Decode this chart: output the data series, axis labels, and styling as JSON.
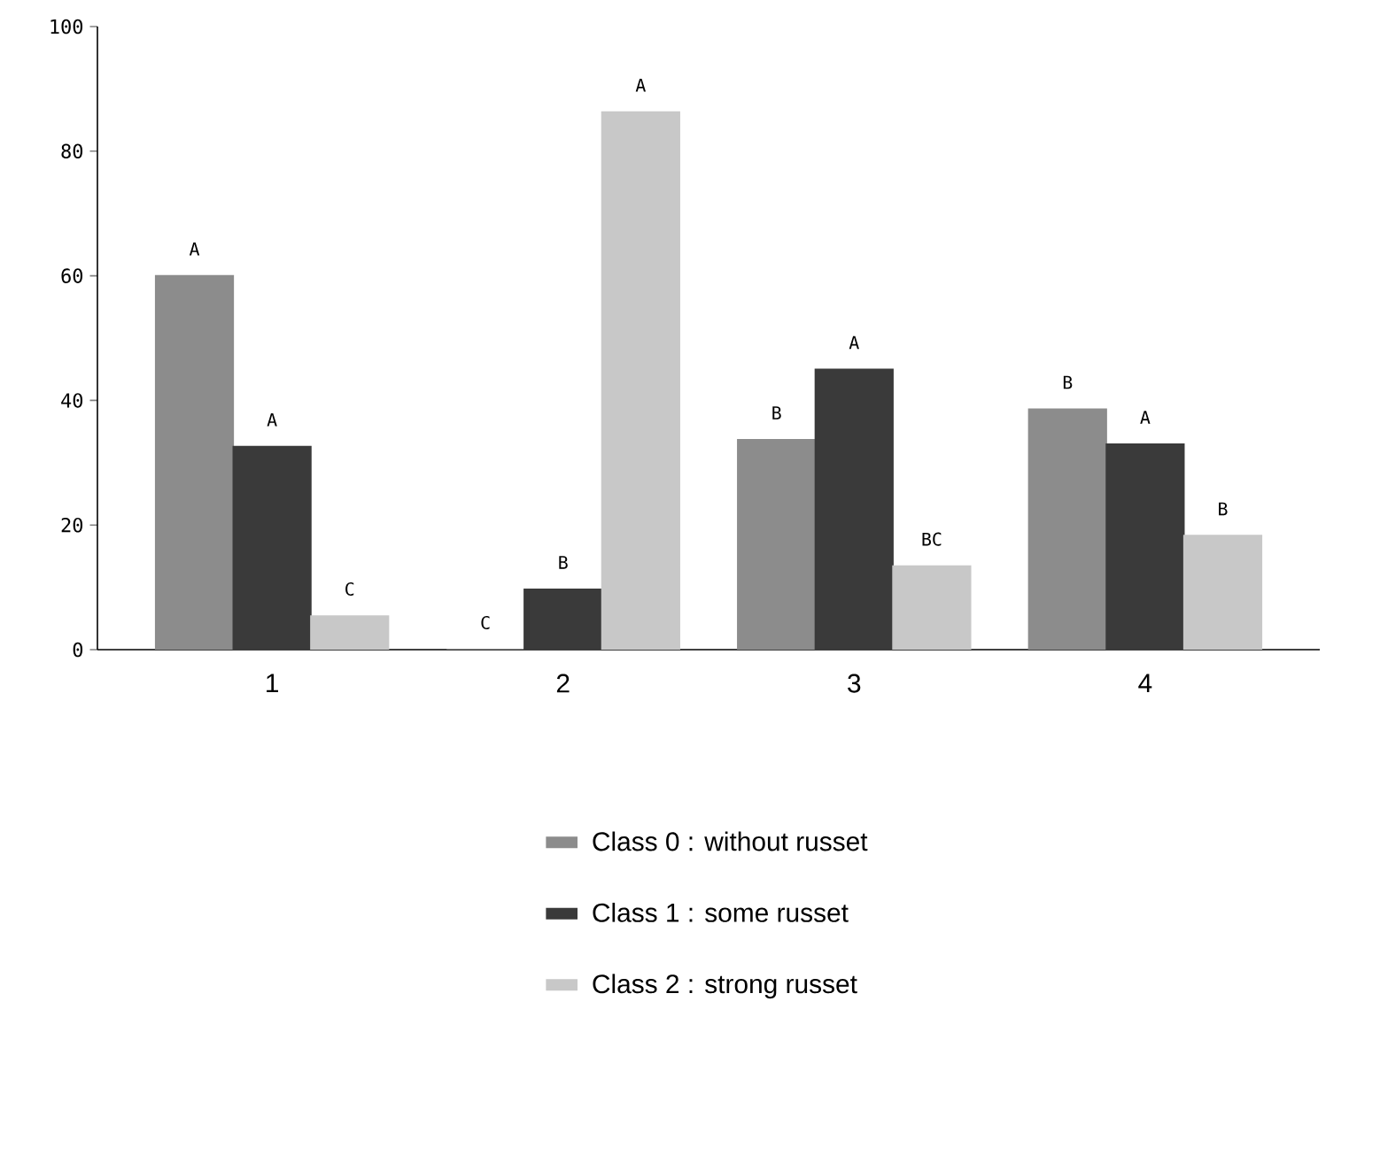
{
  "chart_data": {
    "type": "bar",
    "categories": [
      "1",
      "2",
      "3",
      "4"
    ],
    "series": [
      {
        "name": "Class 0 : without russet",
        "color": "#8c8c8c",
        "values": [
          60,
          0,
          33.7,
          38.6
        ],
        "value_labels": [
          "A",
          "C",
          "B",
          "B"
        ]
      },
      {
        "name": "Class 1 : some russet",
        "color": "#3a3a3a",
        "values": [
          32.6,
          9.7,
          45,
          33
        ],
        "value_labels": [
          "A",
          "B",
          "A",
          "A"
        ]
      },
      {
        "name": "Class 2 : strong russet",
        "color": "#c8c8c8",
        "values": [
          5.4,
          86.3,
          13.4,
          18.3
        ],
        "value_labels": [
          "C",
          "A",
          "BC",
          "B"
        ]
      }
    ],
    "ylim": [
      0,
      100
    ],
    "yticks": [
      0,
      20,
      40,
      60,
      80,
      100
    ],
    "grid": false,
    "legend": "bottom"
  }
}
